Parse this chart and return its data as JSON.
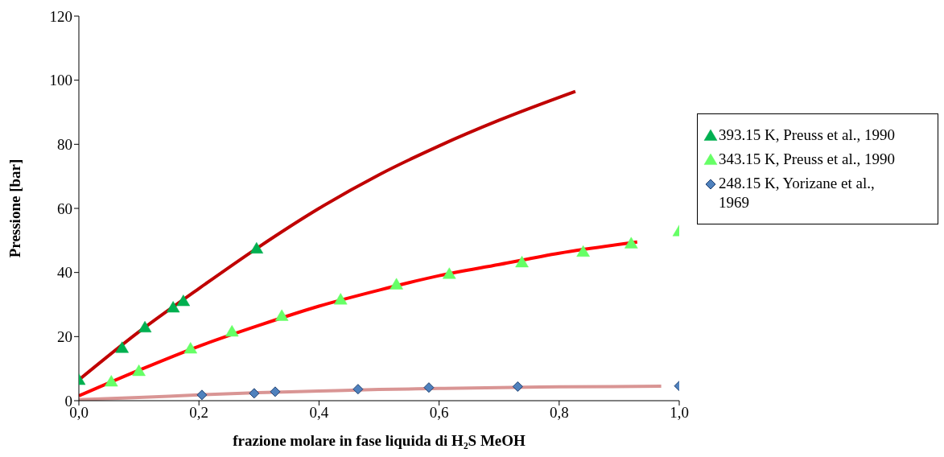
{
  "chart_data": {
    "type": "scatter",
    "xlabel": "frazione molare in fase liquida di H₂S MeOH",
    "ylabel": "Pressione [bar]",
    "xlim": [
      0,
      1
    ],
    "ylim": [
      0,
      120
    ],
    "xticks": [
      {
        "value": 0,
        "label": "0,0"
      },
      {
        "value": 0.2,
        "label": "0,2"
      },
      {
        "value": 0.4,
        "label": "0,4"
      },
      {
        "value": 0.6,
        "label": "0,6"
      },
      {
        "value": 0.8,
        "label": "0,8"
      },
      {
        "value": 1,
        "label": "1,0"
      }
    ],
    "yticks": [
      0,
      20,
      40,
      60,
      80,
      100,
      120
    ],
    "grid": false,
    "legend": "right",
    "series": [
      {
        "type": "line",
        "marker": "none",
        "color": "#c00000",
        "x": [
          0,
          0.1,
          0.2,
          0.3,
          0.4,
          0.5,
          0.6,
          0.7,
          0.827
        ],
        "values": [
          6.5,
          21.5,
          35,
          48,
          60,
          70.5,
          79.5,
          87.5,
          96.5
        ]
      },
      {
        "type": "line",
        "marker": "none",
        "color": "#ff0000",
        "x": [
          0,
          0.1,
          0.2,
          0.3,
          0.4,
          0.5,
          0.6,
          0.7,
          0.8,
          0.93
        ],
        "values": [
          1.5,
          9.5,
          17,
          23.5,
          29.5,
          34.5,
          39,
          42.5,
          46,
          49.5
        ]
      },
      {
        "type": "line",
        "marker": "none",
        "color": "#d99594",
        "x": [
          0,
          0.1,
          0.2,
          0.3,
          0.4,
          0.5,
          0.6,
          0.7,
          0.8,
          0.97
        ],
        "values": [
          0.3,
          1,
          1.8,
          2.5,
          3,
          3.5,
          3.8,
          4.1,
          4.3,
          4.5
        ]
      },
      {
        "marker": "triangle",
        "name": "393.15 K, Preuss et al., 1990",
        "color": "#00b050",
        "x": [
          0,
          0.072,
          0.11,
          0.157,
          0.174,
          0.296
        ],
        "values": [
          6.4,
          16.4,
          22.8,
          29,
          31,
          47.4
        ]
      },
      {
        "marker": "triangle",
        "name": "343.15 K, Preuss et al., 1990",
        "color": "#66ff66",
        "x": [
          0.054,
          0.1,
          0.186,
          0.255,
          0.338,
          0.436,
          0.529,
          0.617,
          0.738,
          0.84,
          0.92,
          1.0
        ],
        "values": [
          5.9,
          9.2,
          16.2,
          21.5,
          26.4,
          31.5,
          36.2,
          39.5,
          43.1,
          46.4,
          49,
          52.8
        ]
      },
      {
        "marker": "diamond",
        "name": "248.15 K, Yorizane et al., 1969",
        "color": "#4f81bd",
        "x": [
          0.205,
          0.292,
          0.327,
          0.465,
          0.583,
          0.731,
          1.0
        ],
        "values": [
          1.8,
          2.3,
          2.8,
          3.6,
          4.1,
          4.4,
          4.6
        ]
      }
    ]
  }
}
